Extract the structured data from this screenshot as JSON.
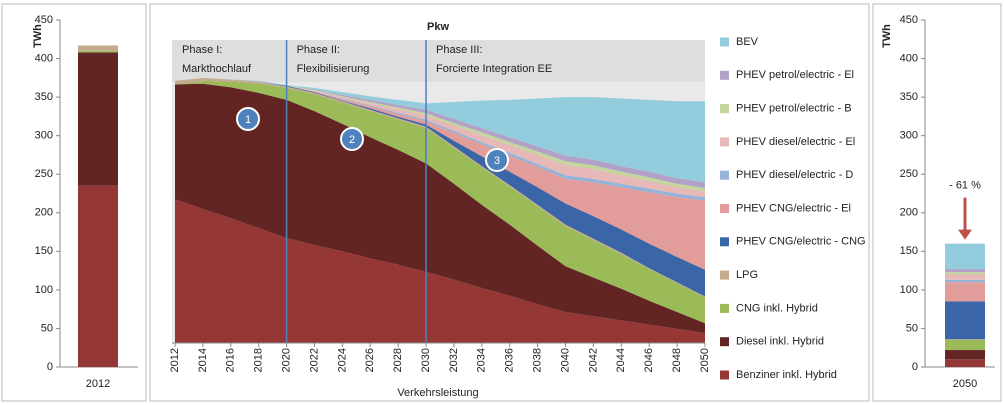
{
  "chart_data": [
    {
      "type": "bar",
      "y_label": "TWh",
      "categories": [
        "2012"
      ],
      "ylim": [
        0,
        450
      ],
      "yticks": [
        0,
        50,
        100,
        150,
        200,
        250,
        300,
        350,
        400,
        450
      ],
      "series": [
        {
          "color": "#953735",
          "values": [
            235
          ]
        },
        {
          "color": "#632523",
          "values": [
            173
          ]
        },
        {
          "color": "#9bbb59",
          "values": [
            2
          ]
        },
        {
          "color": "#c4ab8e",
          "values": [
            7
          ]
        },
        {
          "color": "#3a66a8",
          "values": [
            0
          ]
        },
        {
          "color": "#e29c9a",
          "values": [
            0
          ]
        },
        {
          "color": "#95b3d7",
          "values": [
            0
          ]
        },
        {
          "color": "#e6b9b8",
          "values": [
            0
          ]
        },
        {
          "color": "#c3d69b",
          "values": [
            0
          ]
        },
        {
          "color": "#b3a2c7",
          "values": [
            0
          ]
        },
        {
          "color": "#93cddd",
          "values": [
            0
          ]
        }
      ]
    },
    {
      "type": "area",
      "title": "Pkw",
      "x_label": "Verkehrsleistung",
      "x": [
        2012,
        2014,
        2016,
        2018,
        2020,
        2022,
        2024,
        2026,
        2028,
        2030,
        2032,
        2034,
        2036,
        2038,
        2040,
        2042,
        2044,
        2046,
        2048,
        2050
      ],
      "xlim": [
        2012,
        2050
      ],
      "xticks": [
        2012,
        2014,
        2016,
        2018,
        2020,
        2022,
        2024,
        2026,
        2028,
        2030,
        2032,
        2034,
        2036,
        2038,
        2040,
        2042,
        2044,
        2046,
        2048,
        2050
      ],
      "ylim": [
        0,
        430
      ],
      "vlines": [
        2020,
        2030
      ],
      "phases": [
        {
          "name": "Phase I:",
          "label": "Markthochlauf"
        },
        {
          "name": "Phase II:",
          "label": "Flexibilisierung"
        },
        {
          "name": "Phase III:",
          "label": "Forcierte Integration EE"
        }
      ],
      "markers": [
        "1",
        "2",
        "3"
      ],
      "series": [
        {
          "name": "Benziner inkl. Hybrid",
          "color": "#953735",
          "values": [
            204,
            190,
            177,
            163,
            149,
            139,
            130,
            120,
            111,
            101,
            90,
            78,
            67,
            55,
            44,
            38,
            32,
            26,
            20,
            14
          ]
        },
        {
          "name": "Diesel inkl. Hybrid",
          "color": "#632523",
          "values": [
            163,
            178,
            186,
            192,
            196,
            190,
            181,
            172,
            163,
            154,
            136,
            118,
            101,
            83,
            65,
            55,
            45,
            34,
            24,
            14
          ]
        },
        {
          "name": "CNG inkl. Hybrid",
          "color": "#9bbb59",
          "values": [
            0,
            4,
            8,
            13,
            17,
            24,
            30,
            37,
            43,
            50,
            51,
            53,
            54,
            56,
            57,
            53,
            49,
            45,
            41,
            37
          ]
        },
        {
          "name": "LPG",
          "color": "#c4ab8e",
          "values": [
            5,
            4,
            3,
            3,
            2,
            2,
            2,
            2,
            2,
            2,
            2,
            2,
            2,
            2,
            2,
            2,
            2,
            1,
            1,
            1
          ]
        },
        {
          "name": "PHEV CNG/electric - CNG",
          "color": "#3a66a8",
          "values": [
            0,
            0,
            0,
            0,
            1,
            1,
            1,
            2,
            2,
            3,
            8,
            14,
            19,
            25,
            30,
            32,
            33,
            35,
            36,
            38
          ]
        },
        {
          "name": "PHEV CNG/electric - El",
          "color": "#e29c9a",
          "values": [
            0,
            0,
            0,
            0,
            0,
            1,
            2,
            3,
            4,
            5,
            11,
            17,
            23,
            29,
            35,
            48,
            60,
            73,
            85,
            98
          ]
        },
        {
          "name": "PHEV diesel/electric - D",
          "color": "#95b3d7",
          "values": [
            0,
            0,
            0,
            0,
            0,
            0,
            1,
            1,
            2,
            2,
            3,
            3,
            4,
            4,
            5,
            5,
            5,
            5,
            5,
            5
          ]
        },
        {
          "name": "PHEV diesel/electric - El",
          "color": "#e6b9b8",
          "values": [
            0,
            0,
            0,
            0,
            0,
            1,
            2,
            3,
            5,
            6,
            8,
            10,
            11,
            13,
            15,
            14,
            12,
            11,
            9,
            8
          ]
        },
        {
          "name": "PHEV petrol/electric - B",
          "color": "#c3d69b",
          "values": [
            0,
            0,
            0,
            0,
            0,
            1,
            1,
            2,
            2,
            3,
            3,
            4,
            4,
            5,
            5,
            5,
            5,
            5,
            5,
            5
          ]
        },
        {
          "name": "PHEV petrol/electric - El",
          "color": "#b3a2c7",
          "values": [
            0,
            0,
            0,
            0,
            0,
            1,
            2,
            3,
            4,
            5,
            6,
            6,
            7,
            7,
            8,
            8,
            8,
            8,
            8,
            8
          ]
        },
        {
          "name": "BEV",
          "color": "#93cddd",
          "values": [
            0,
            0,
            0,
            1,
            1,
            2,
            4,
            5,
            7,
            9,
            24,
            39,
            53,
            68,
            83,
            89,
            96,
            102,
            109,
            115
          ]
        }
      ]
    },
    {
      "type": "bar",
      "y_label": "TWh",
      "categories": [
        "2050"
      ],
      "ylim": [
        0,
        450
      ],
      "yticks": [
        0,
        50,
        100,
        150,
        200,
        250,
        300,
        350,
        400,
        450
      ],
      "annotation": "- 61 %",
      "series": [
        {
          "color": "#953735",
          "values": [
            10
          ]
        },
        {
          "color": "#632523",
          "values": [
            12
          ]
        },
        {
          "color": "#9bbb59",
          "values": [
            13
          ]
        },
        {
          "color": "#c4ab8e",
          "values": [
            1
          ]
        },
        {
          "color": "#3a66a8",
          "values": [
            49
          ]
        },
        {
          "color": "#e29c9a",
          "values": [
            25
          ]
        },
        {
          "color": "#95b3d7",
          "values": [
            3
          ]
        },
        {
          "color": "#e6b9b8",
          "values": [
            7
          ]
        },
        {
          "color": "#c3d69b",
          "values": [
            3
          ]
        },
        {
          "color": "#b3a2c7",
          "values": [
            4
          ]
        },
        {
          "color": "#93cddd",
          "values": [
            33
          ]
        }
      ]
    }
  ]
}
